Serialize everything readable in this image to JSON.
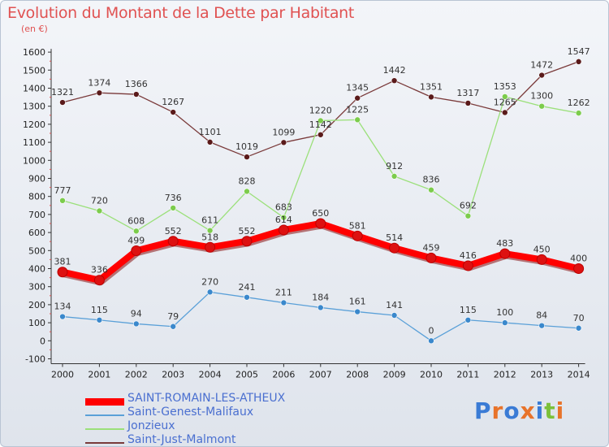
{
  "title": "Evolution du Montant de la Dette par Habitant",
  "subtitle": "(en €)",
  "logo": "Proxiti",
  "chart_data": {
    "type": "line",
    "title": "Evolution du Montant de la Dette par Habitant",
    "subtitle": "(en €)",
    "x": [
      "2000",
      "2001",
      "2002",
      "2003",
      "2004",
      "2005",
      "2006",
      "2007",
      "2008",
      "2009",
      "2010",
      "2011",
      "2012",
      "2013",
      "2014"
    ],
    "ylim": [
      -100,
      1600
    ],
    "yticks": [
      -100,
      0,
      100,
      200,
      300,
      400,
      500,
      600,
      700,
      800,
      900,
      1000,
      1100,
      1200,
      1300,
      1400,
      1500,
      1600
    ],
    "grid": false,
    "legend_position": "bottom-left",
    "series": [
      {
        "name": "SAINT-ROMAIN-LES-ATHEUX",
        "color": "#ff0000",
        "marker": "#dd1111",
        "width": 8,
        "values": [
          381,
          336,
          499,
          552,
          518,
          552,
          614,
          650,
          581,
          514,
          459,
          416,
          483,
          450,
          400
        ]
      },
      {
        "name": "Saint-Genest-Malifaux",
        "color": "#5aa0d8",
        "marker": "#3a88cc",
        "width": 1.3,
        "values": [
          134,
          115,
          94,
          79,
          270,
          241,
          211,
          184,
          161,
          141,
          0,
          115,
          100,
          84,
          70
        ]
      },
      {
        "name": "Jonzieux",
        "color": "#9be07a",
        "marker": "#7ccc4c",
        "width": 1.3,
        "values": [
          777,
          720,
          608,
          736,
          611,
          828,
          683,
          1220,
          1225,
          912,
          836,
          692,
          1353,
          1300,
          1262
        ]
      },
      {
        "name": "Saint-Just-Malmont",
        "color": "#7a3a3a",
        "marker": "#5a1a1a",
        "width": 1.3,
        "values": [
          1321,
          1374,
          1366,
          1267,
          1101,
          1019,
          1099,
          1142,
          1345,
          1442,
          1351,
          1317,
          1265,
          1472,
          1547
        ]
      }
    ]
  }
}
